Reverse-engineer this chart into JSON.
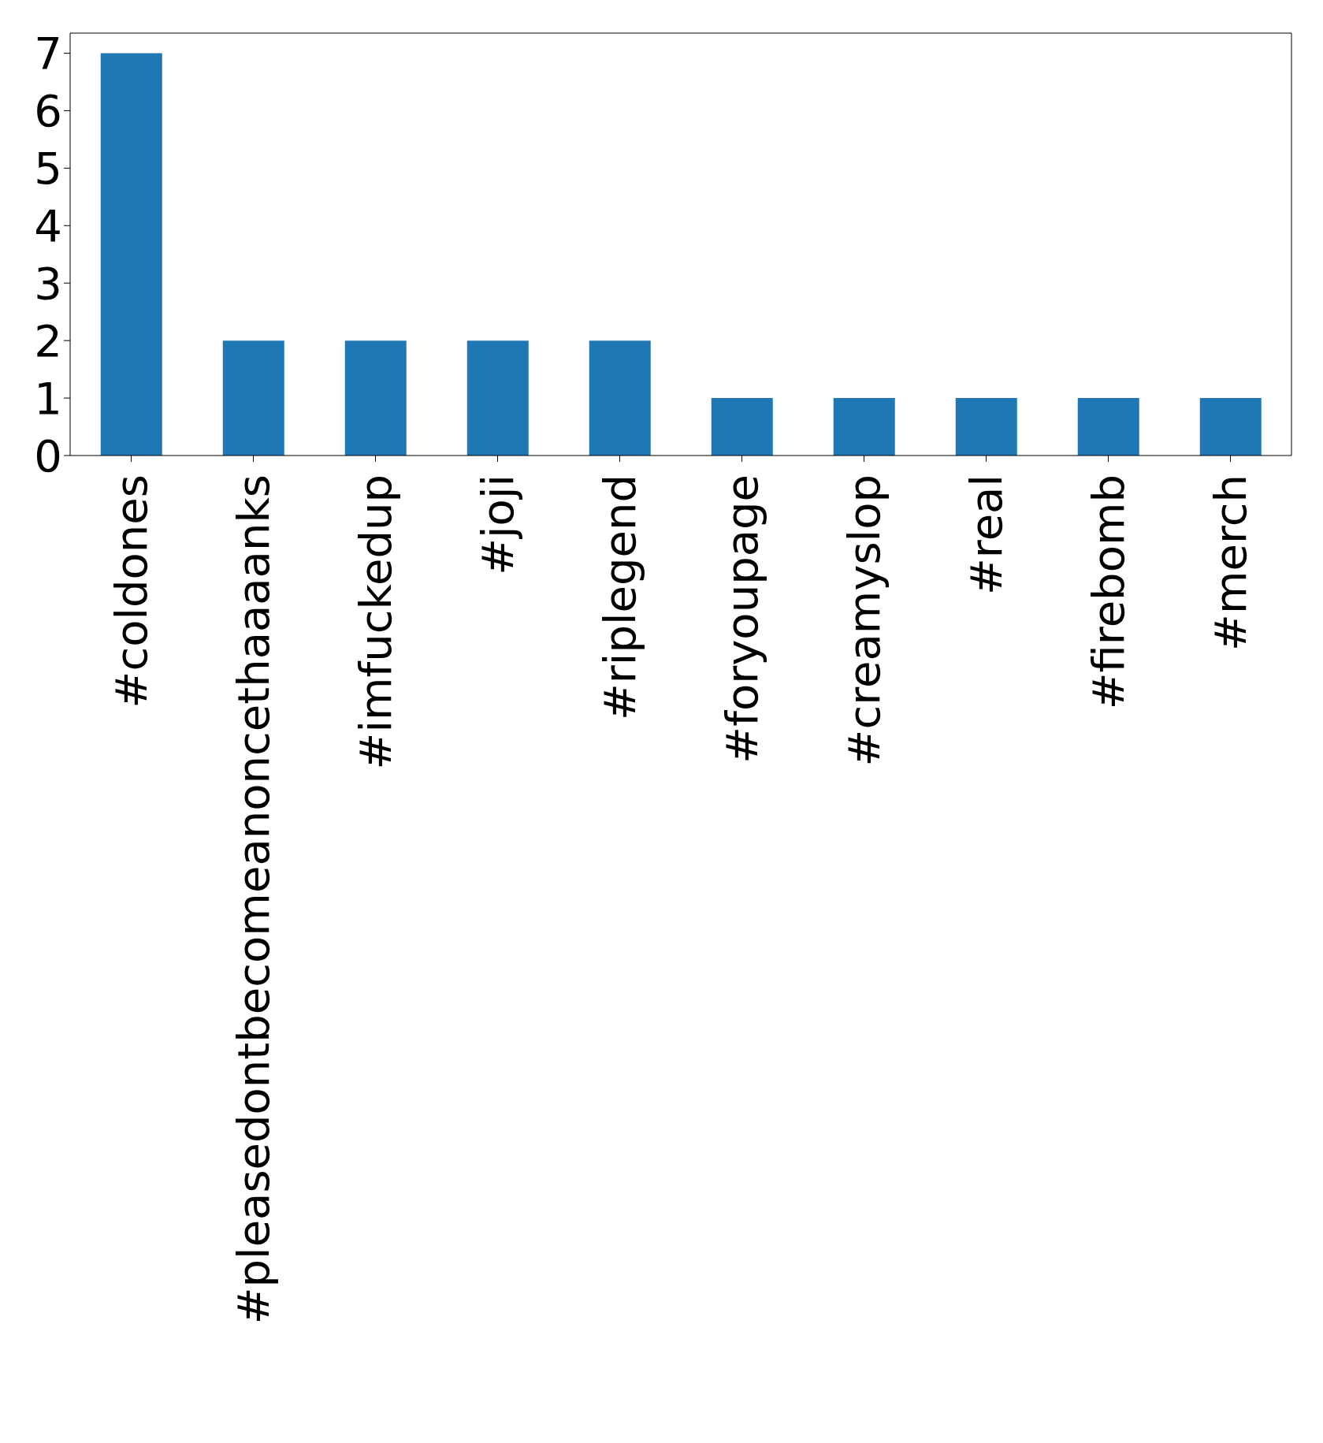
{
  "chart_data": {
    "type": "bar",
    "categories": [
      "#coldones",
      "#pleasedontbecomeanoncethaaaanks",
      "#imfuckedup",
      "#joji",
      "#riplegend",
      "#foryoupage",
      "#creamyslop",
      "#real",
      "#firebomb",
      "#merch"
    ],
    "values": [
      7,
      2,
      2,
      2,
      2,
      1,
      1,
      1,
      1,
      1
    ],
    "color": "#1f77b4",
    "ylim": [
      0,
      7.35
    ],
    "yticks": [
      0,
      1,
      2,
      3,
      4,
      5,
      6,
      7
    ],
    "grid": false,
    "legend": false
  }
}
